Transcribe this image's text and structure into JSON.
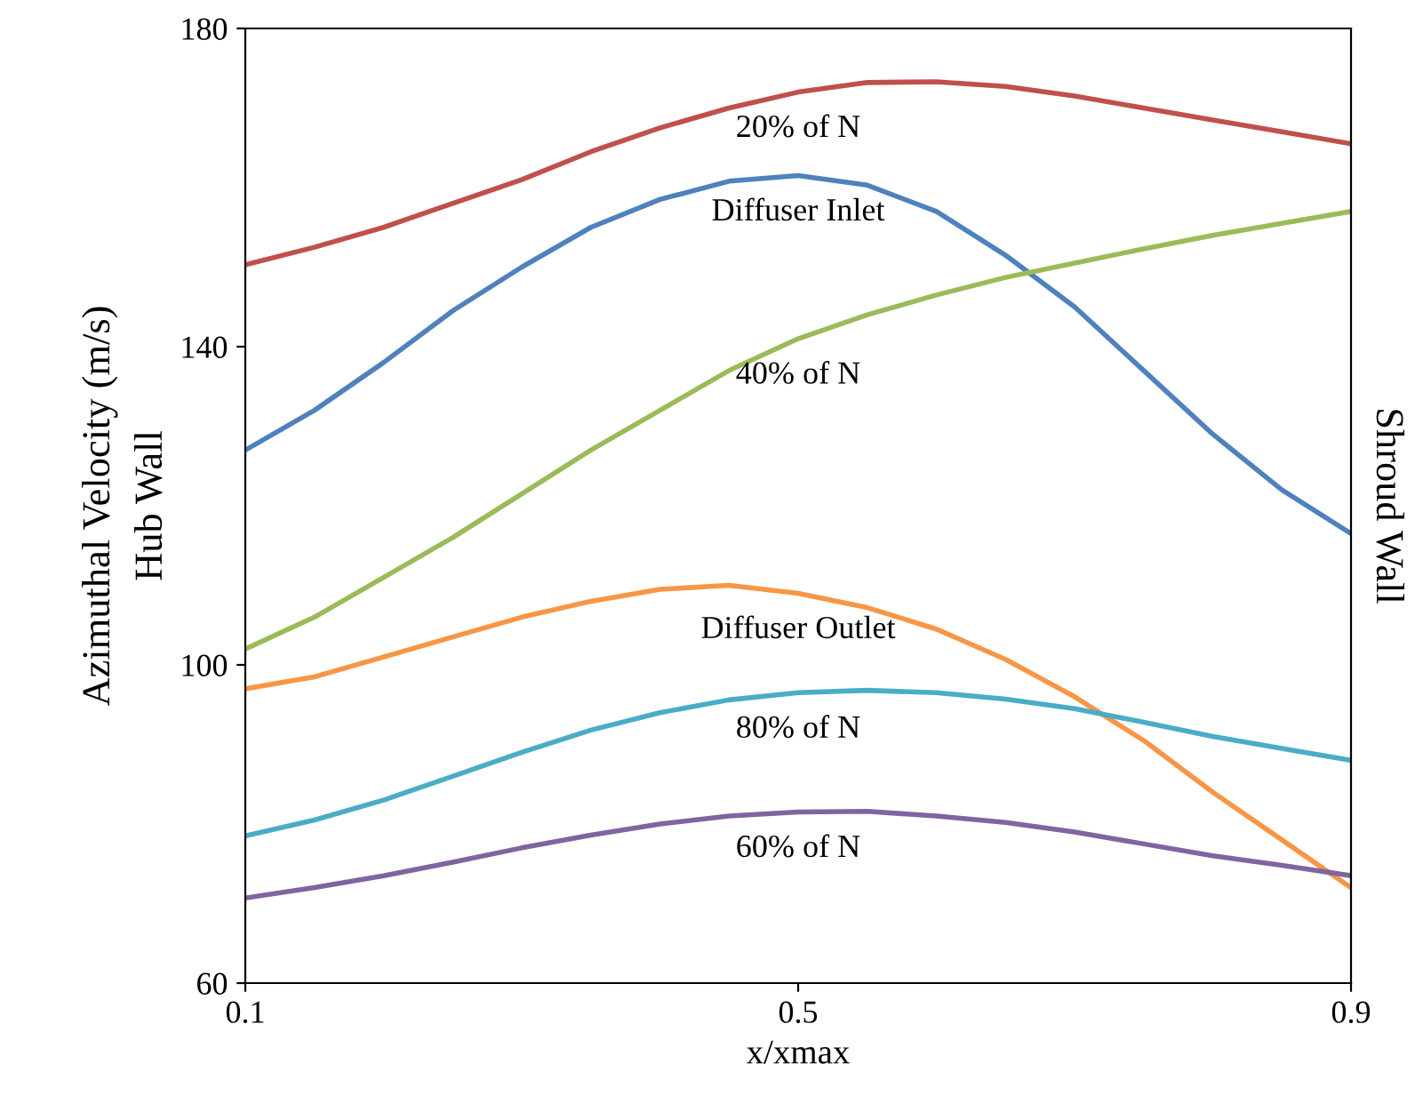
{
  "chart_data": {
    "type": "line",
    "xlabel": "x/xmax",
    "ylabel": "Azimuthal Velocity (m/s)\nHub Wall",
    "x": [
      0.1,
      0.15,
      0.2,
      0.25,
      0.3,
      0.35,
      0.4,
      0.45,
      0.5,
      0.55,
      0.6,
      0.65,
      0.7,
      0.75,
      0.8,
      0.85,
      0.9
    ],
    "series": [
      {
        "name": "20% of N",
        "color": "#c0504d",
        "values": [
          150.3,
          152.5,
          155,
          158,
          161,
          164.5,
          167.5,
          170,
          172,
          173.2,
          173.3,
          172.7,
          171.5,
          170,
          168.5,
          167,
          165.5
        ]
      },
      {
        "name": "Diffuser Inlet",
        "color": "#4f81bd",
        "values": [
          127,
          132,
          138,
          144.5,
          150,
          155,
          158.5,
          160.8,
          161.5,
          160.3,
          157,
          151.5,
          145,
          137,
          129,
          122,
          116.5
        ]
      },
      {
        "name": "40% of N",
        "color": "#9bbb59",
        "values": [
          102,
          106,
          111,
          116,
          121.5,
          127,
          132,
          137,
          141,
          144,
          146.5,
          148.7,
          150.5,
          152.3,
          154,
          155.5,
          157
        ]
      },
      {
        "name": "Diffuser Outlet",
        "color": "#f79646",
        "values": [
          97,
          98.5,
          101,
          103.5,
          106,
          108,
          109.5,
          110,
          109,
          107.2,
          104.5,
          100.7,
          96,
          90.5,
          84,
          78,
          72
        ]
      },
      {
        "name": "80% of N",
        "color": "#4bacc6",
        "values": [
          78.5,
          80.5,
          83,
          86,
          89,
          91.8,
          94,
          95.6,
          96.5,
          96.8,
          96.5,
          95.7,
          94.5,
          92.8,
          91,
          89.5,
          88
        ]
      },
      {
        "name": "60% of N",
        "color": "#8064a2",
        "values": [
          70.7,
          72,
          73.5,
          75.2,
          77,
          78.6,
          80,
          81,
          81.5,
          81.6,
          81,
          80.2,
          79,
          77.5,
          76,
          74.8,
          73.5
        ]
      }
    ],
    "xlim": [
      0.1,
      0.9
    ],
    "xticks": [
      0.1,
      0.5,
      0.9
    ],
    "ylim": [
      60,
      180
    ],
    "yticks": [
      60,
      100,
      140,
      180
    ],
    "grid": false,
    "marker": "none",
    "line_style": "solid",
    "annotations": [
      "Shroud Wall"
    ]
  }
}
